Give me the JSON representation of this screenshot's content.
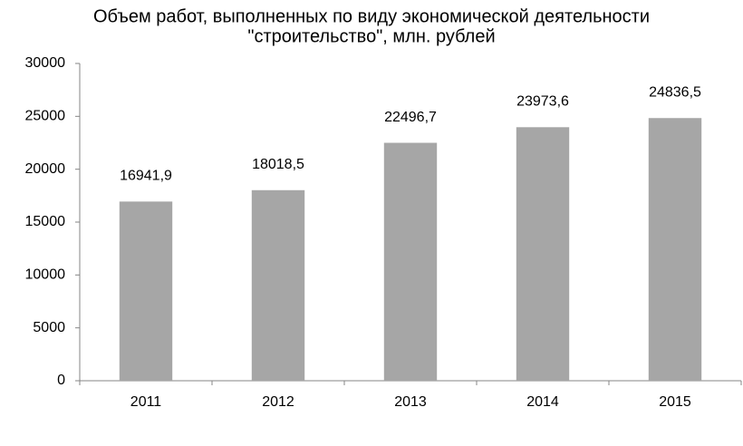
{
  "chart_data": {
    "type": "bar",
    "title": [
      "Объем работ, выполненных по виду экономической деятельности",
      "\"строительство\", млн. рублей"
    ],
    "categories": [
      "2011",
      "2012",
      "2013",
      "2014",
      "2015"
    ],
    "values": [
      16941.9,
      18018.5,
      22496.7,
      23973.6,
      24836.5
    ],
    "value_labels": [
      "16941,9",
      "18018,5",
      "22496,7",
      "23973,6",
      "24836,5"
    ],
    "color": "#a6a6a6",
    "ylim": [
      0,
      30000
    ],
    "yticks": [
      0,
      5000,
      10000,
      15000,
      20000,
      25000,
      30000
    ],
    "grid": false
  }
}
